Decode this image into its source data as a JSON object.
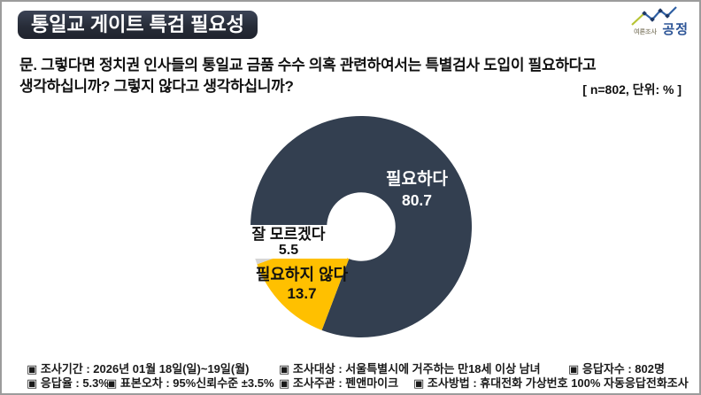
{
  "header": {
    "title": "통일교 게이트 특검 필요성",
    "title_bg": "#272C38",
    "logo": {
      "small_text": "여론조사",
      "brand_text": "공정",
      "brand_color": "#2D5597",
      "line_green": "#B7C433",
      "line_blue": "#2E5FA3",
      "marker_color": "#1F3864"
    }
  },
  "question": {
    "text": "문. 그렇다면 정치권 인사들의 통일교 금품 수수 의혹 관련하여서는 특별검사 도입이 필요하다고 생각하십니까? 그렇지 않다고 생각하십니까?",
    "note": "[ n=802, 단위: % ]"
  },
  "chart_data": {
    "type": "pie",
    "subtype": "donut",
    "title": "통일교 게이트 특검 필요성",
    "unit": "%",
    "n": 802,
    "start_angle_deg": 270,
    "direction": "clockwise",
    "inner_radius_ratio": 0.31,
    "slices": [
      {
        "label": "필요하다",
        "value": 80.7,
        "color": "#333F50",
        "text_color": "#FFFFFF"
      },
      {
        "label": "필요하지 않다",
        "value": 13.7,
        "color": "#FFC000",
        "text_color": "#1A1A1A"
      },
      {
        "label": "잘 모르겠다",
        "value": 5.5,
        "color": "#D6D6D6",
        "text_color": "#1A1A1A"
      }
    ]
  },
  "footer": {
    "row1": [
      "▣ 조사기간 : 2026년 01월 18일(일)~19일(월)",
      "▣ 조사대상 : 서울특별시에 거주하는 만18세 이상 남녀",
      "▣ 응답자수 : 802명"
    ],
    "row2": [
      "▣ 응답율 : 5.3%",
      "▣ 표본오차 : 95%신뢰수준 ±3.5%",
      "▣ 조사주관 : 펜앤마이크",
      "▣ 조사방법 : 휴대전화 가상번호 100% 자동응답전화조사"
    ]
  }
}
